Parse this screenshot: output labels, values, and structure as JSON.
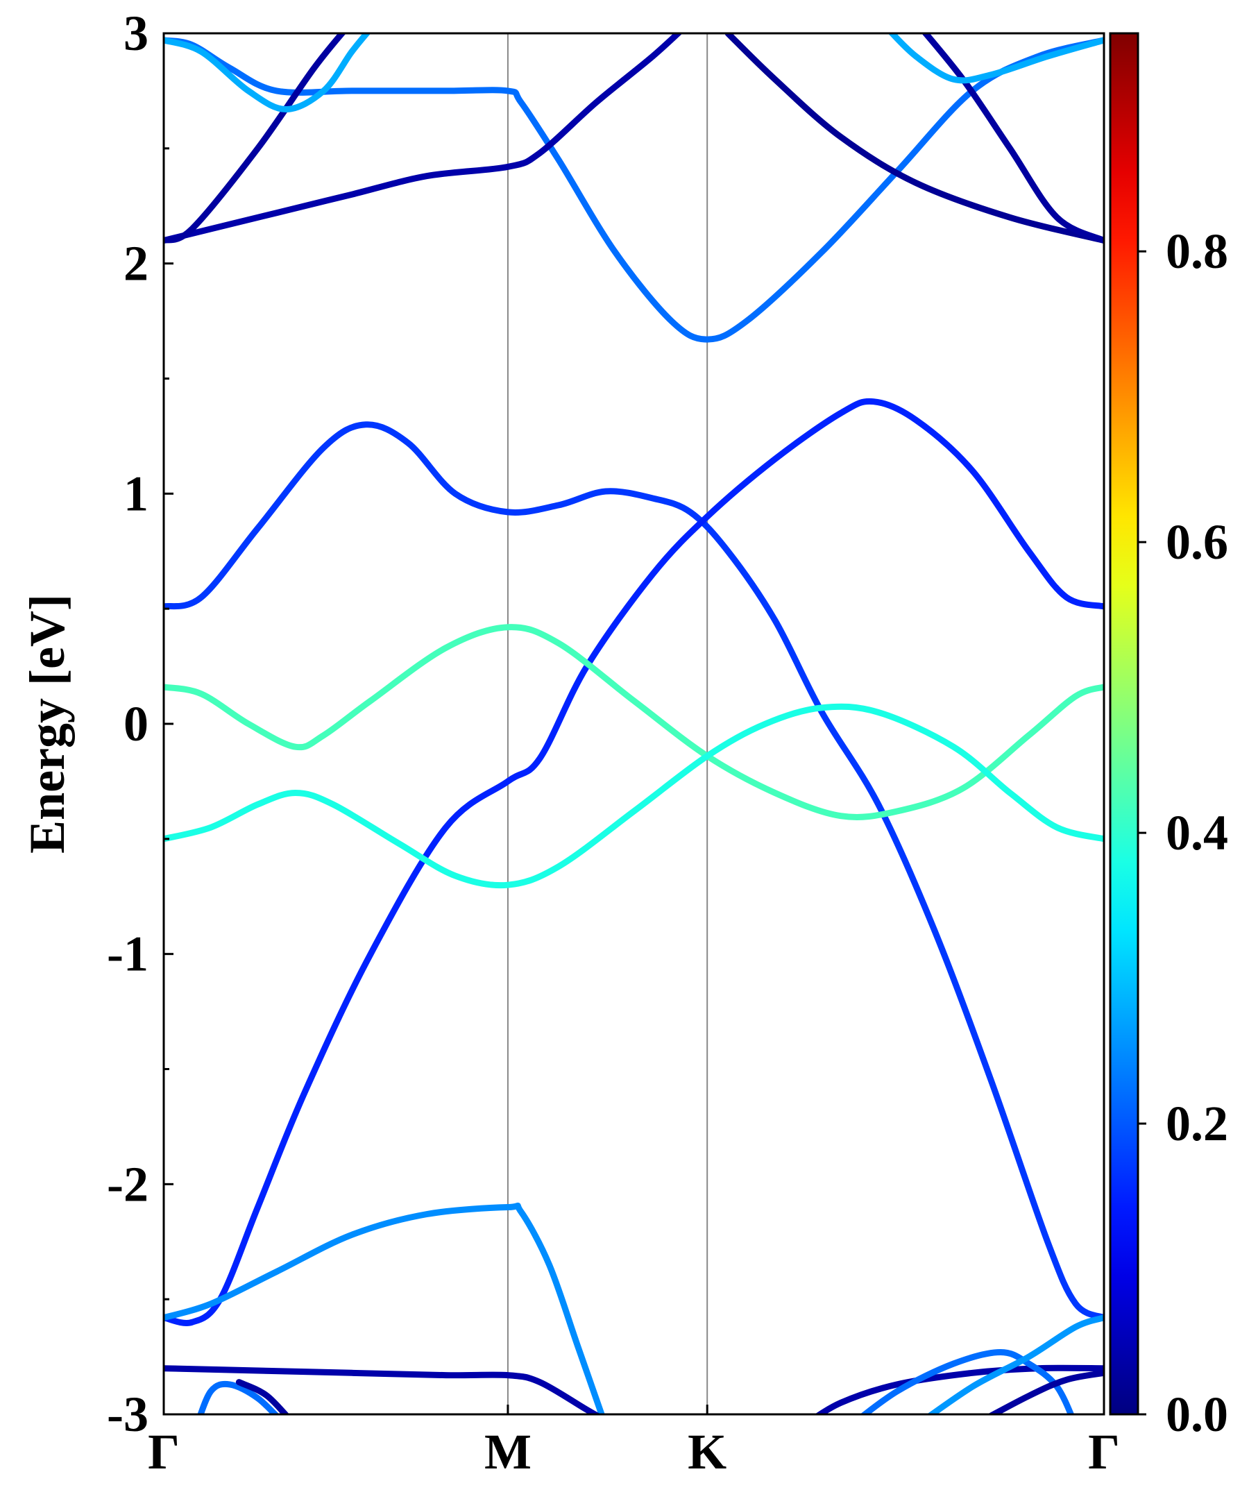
{
  "chart_data": {
    "type": "line",
    "title": "",
    "xlabel": "",
    "ylabel": "Energy [eV]",
    "ylim": [
      -3,
      3
    ],
    "y_major_ticks": [
      -3,
      -2,
      -1,
      0,
      1,
      2,
      3
    ],
    "y_tick_labels": [
      "-3",
      "-2",
      "-1",
      "0",
      "1",
      "2",
      "3"
    ],
    "x_ticks": [
      {
        "pos": 0.0,
        "label": "Γ"
      },
      {
        "pos": 0.366,
        "label": "M"
      },
      {
        "pos": 0.578,
        "label": "K"
      },
      {
        "pos": 1.0,
        "label": "Γ"
      }
    ],
    "grid": "vertical lines at high-symmetry points",
    "colormap": "jet",
    "colorbar": {
      "range": [
        0,
        0.95
      ],
      "ticks": [
        0.0,
        0.2,
        0.4,
        0.6,
        0.8
      ],
      "tick_labels": [
        "0.0",
        "0.2",
        "0.4",
        "0.6",
        "0.8"
      ]
    },
    "series": [
      {
        "color_value": 0.22,
        "points": [
          [
            0,
            2.97
          ],
          [
            0.03,
            2.95
          ],
          [
            0.07,
            2.85
          ],
          [
            0.12,
            2.75
          ],
          [
            0.2,
            2.75
          ],
          [
            0.3,
            2.75
          ],
          [
            0.366,
            2.75
          ],
          [
            0.38,
            2.7
          ],
          [
            0.42,
            2.45
          ],
          [
            0.48,
            2.05
          ],
          [
            0.54,
            1.75
          ],
          [
            0.578,
            1.67
          ],
          [
            0.62,
            1.75
          ],
          [
            0.7,
            2.05
          ],
          [
            0.78,
            2.4
          ],
          [
            0.86,
            2.75
          ],
          [
            0.93,
            2.9
          ],
          [
            1.0,
            2.97
          ]
        ]
      },
      {
        "color_value": 0.04,
        "points": [
          [
            0,
            2.1
          ],
          [
            0.05,
            2.15
          ],
          [
            0.12,
            2.22
          ],
          [
            0.2,
            2.3
          ],
          [
            0.28,
            2.38
          ],
          [
            0.366,
            2.42
          ],
          [
            0.4,
            2.48
          ],
          [
            0.46,
            2.7
          ],
          [
            0.52,
            2.9
          ],
          [
            0.56,
            3.05
          ]
        ]
      },
      {
        "color_value": 0.03,
        "points": [
          [
            0,
            2.1
          ],
          [
            0.03,
            2.15
          ],
          [
            0.1,
            2.5
          ],
          [
            0.16,
            2.85
          ],
          [
            0.2,
            3.05
          ]
        ]
      },
      {
        "color_value": 0.02,
        "points": [
          [
            0.6,
            3.0
          ],
          [
            0.65,
            2.8
          ],
          [
            0.72,
            2.55
          ],
          [
            0.8,
            2.35
          ],
          [
            0.9,
            2.2
          ],
          [
            1.0,
            2.1
          ]
        ]
      },
      {
        "color_value": 0.03,
        "points": [
          [
            0.8,
            3.05
          ],
          [
            0.85,
            2.8
          ],
          [
            0.9,
            2.5
          ],
          [
            0.95,
            2.2
          ],
          [
            1.0,
            2.1
          ]
        ]
      },
      {
        "color_value": 0.28,
        "points": [
          [
            0,
            2.97
          ],
          [
            0.04,
            2.92
          ],
          [
            0.09,
            2.75
          ],
          [
            0.13,
            2.67
          ],
          [
            0.17,
            2.75
          ],
          [
            0.2,
            2.92
          ],
          [
            0.22,
            3.02
          ]
        ]
      },
      {
        "color_value": 0.28,
        "points": [
          [
            0.77,
            3.02
          ],
          [
            0.8,
            2.9
          ],
          [
            0.84,
            2.8
          ],
          [
            0.88,
            2.82
          ],
          [
            0.94,
            2.9
          ],
          [
            1.0,
            2.97
          ]
        ]
      },
      {
        "color_value": 0.17,
        "points": [
          [
            0,
            0.51
          ],
          [
            0.04,
            0.55
          ],
          [
            0.1,
            0.85
          ],
          [
            0.17,
            1.2
          ],
          [
            0.215,
            1.3
          ],
          [
            0.26,
            1.22
          ],
          [
            0.31,
            1.0
          ],
          [
            0.366,
            0.92
          ],
          [
            0.42,
            0.95
          ],
          [
            0.47,
            1.01
          ],
          [
            0.52,
            0.98
          ],
          [
            0.56,
            0.92
          ],
          [
            0.6,
            0.75
          ],
          [
            0.65,
            0.45
          ],
          [
            0.7,
            0.05
          ],
          [
            0.76,
            -0.35
          ],
          [
            0.82,
            -0.9
          ],
          [
            0.88,
            -1.55
          ],
          [
            0.94,
            -2.25
          ],
          [
            0.97,
            -2.52
          ],
          [
            1.0,
            -2.58
          ]
        ]
      },
      {
        "color_value": 0.15,
        "points": [
          [
            0,
            -2.58
          ],
          [
            0.03,
            -2.6
          ],
          [
            0.06,
            -2.5
          ],
          [
            0.1,
            -2.1
          ],
          [
            0.15,
            -1.6
          ],
          [
            0.22,
            -1.0
          ],
          [
            0.3,
            -0.45
          ],
          [
            0.366,
            -0.25
          ],
          [
            0.4,
            -0.15
          ],
          [
            0.45,
            0.25
          ],
          [
            0.52,
            0.65
          ],
          [
            0.578,
            0.9
          ],
          [
            0.65,
            1.15
          ],
          [
            0.72,
            1.35
          ],
          [
            0.755,
            1.4
          ],
          [
            0.8,
            1.32
          ],
          [
            0.86,
            1.1
          ],
          [
            0.92,
            0.75
          ],
          [
            0.96,
            0.55
          ],
          [
            1.0,
            0.51
          ]
        ]
      },
      {
        "color_value": 0.42,
        "points": [
          [
            0,
            0.16
          ],
          [
            0.04,
            0.13
          ],
          [
            0.09,
            0.0
          ],
          [
            0.14,
            -0.1
          ],
          [
            0.17,
            -0.05
          ],
          [
            0.22,
            0.1
          ],
          [
            0.3,
            0.33
          ],
          [
            0.366,
            0.42
          ],
          [
            0.42,
            0.35
          ],
          [
            0.5,
            0.1
          ],
          [
            0.578,
            -0.14
          ],
          [
            0.65,
            -0.3
          ],
          [
            0.72,
            -0.4
          ],
          [
            0.78,
            -0.38
          ],
          [
            0.85,
            -0.28
          ],
          [
            0.92,
            -0.05
          ],
          [
            0.97,
            0.12
          ],
          [
            1.0,
            0.16
          ]
        ]
      },
      {
        "color_value": 0.38,
        "points": [
          [
            0,
            -0.5
          ],
          [
            0.05,
            -0.45
          ],
          [
            0.1,
            -0.35
          ],
          [
            0.14,
            -0.3
          ],
          [
            0.18,
            -0.35
          ],
          [
            0.25,
            -0.52
          ],
          [
            0.31,
            -0.66
          ],
          [
            0.366,
            -0.7
          ],
          [
            0.42,
            -0.62
          ],
          [
            0.5,
            -0.38
          ],
          [
            0.578,
            -0.14
          ],
          [
            0.64,
            0.0
          ],
          [
            0.7,
            0.07
          ],
          [
            0.76,
            0.05
          ],
          [
            0.84,
            -0.1
          ],
          [
            0.9,
            -0.3
          ],
          [
            0.95,
            -0.45
          ],
          [
            1.0,
            -0.5
          ]
        ]
      },
      {
        "color_value": 0.25,
        "points": [
          [
            0,
            -2.58
          ],
          [
            0.05,
            -2.52
          ],
          [
            0.12,
            -2.38
          ],
          [
            0.2,
            -2.22
          ],
          [
            0.28,
            -2.13
          ],
          [
            0.366,
            -2.1
          ],
          [
            0.38,
            -2.12
          ],
          [
            0.41,
            -2.35
          ],
          [
            0.44,
            -2.7
          ],
          [
            0.47,
            -3.05
          ]
        ]
      },
      {
        "color_value": 0.04,
        "points": [
          [
            0,
            -2.8
          ],
          [
            0.1,
            -2.81
          ],
          [
            0.2,
            -2.82
          ],
          [
            0.3,
            -2.83
          ],
          [
            0.366,
            -2.83
          ],
          [
            0.4,
            -2.86
          ],
          [
            0.45,
            -2.98
          ],
          [
            0.48,
            -3.05
          ]
        ]
      },
      {
        "color_value": 0.04,
        "points": [
          [
            0.68,
            -3.05
          ],
          [
            0.72,
            -2.95
          ],
          [
            0.78,
            -2.87
          ],
          [
            0.86,
            -2.82
          ],
          [
            0.93,
            -2.8
          ],
          [
            1.0,
            -2.8
          ]
        ]
      },
      {
        "color_value": 0.22,
        "points": [
          [
            0.73,
            -3.05
          ],
          [
            0.78,
            -2.9
          ],
          [
            0.84,
            -2.78
          ],
          [
            0.89,
            -2.73
          ],
          [
            0.92,
            -2.78
          ],
          [
            0.95,
            -2.88
          ],
          [
            0.97,
            -3.05
          ]
        ]
      },
      {
        "color_value": 0.26,
        "points": [
          [
            0.8,
            -3.05
          ],
          [
            0.86,
            -2.88
          ],
          [
            0.92,
            -2.75
          ],
          [
            0.97,
            -2.62
          ],
          [
            1.0,
            -2.58
          ]
        ]
      },
      {
        "color_value": 0.22,
        "points": [
          [
            0.035,
            -3.05
          ],
          [
            0.05,
            -2.9
          ],
          [
            0.07,
            -2.87
          ],
          [
            0.1,
            -2.93
          ],
          [
            0.13,
            -3.05
          ]
        ]
      },
      {
        "color_value": 0.03,
        "points": [
          [
            0.08,
            -2.86
          ],
          [
            0.11,
            -2.92
          ],
          [
            0.14,
            -3.05
          ]
        ]
      },
      {
        "color_value": 0.03,
        "points": [
          [
            0.86,
            -3.05
          ],
          [
            0.92,
            -2.92
          ],
          [
            0.96,
            -2.85
          ],
          [
            1.0,
            -2.82
          ]
        ]
      }
    ]
  }
}
